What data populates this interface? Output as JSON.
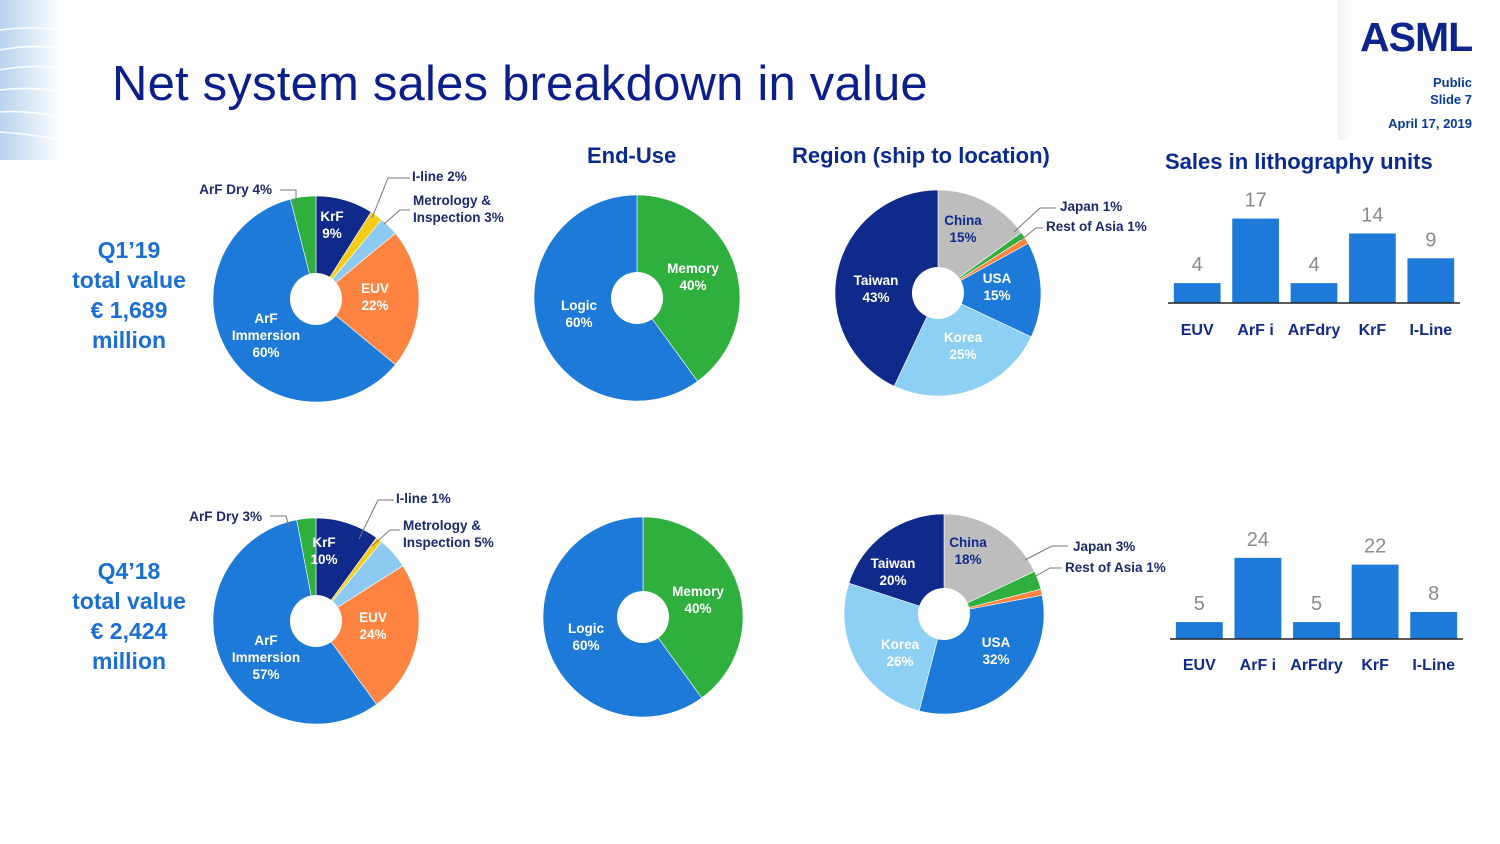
{
  "header": {
    "title": "Net system sales breakdown in value",
    "logo": "ASML",
    "classification": "Public",
    "slide": "Slide 7",
    "date": "April 17, 2019"
  },
  "column_titles": {
    "end_use": "End-Use",
    "region": "Region (ship to location)",
    "units": "Sales in lithography units"
  },
  "periods": [
    {
      "line1": "Q1’19",
      "line2": "total value",
      "line3": "€ 1,689",
      "line4": "million"
    },
    {
      "line1": "Q4’18",
      "line2": "total value",
      "line3": "€ 2,424",
      "line4": "million"
    }
  ],
  "colors": {
    "arf_immersion": "#1e7ad8",
    "arf_dry": "#2eaf3e",
    "krf": "#0f2a8a",
    "iline": "#f5cc18",
    "metrology": "#8ec9f2",
    "euv": "#ff8441",
    "logic": "#1e7ad8",
    "memory": "#2eaf3e",
    "taiwan": "#0f2a8a",
    "china": "#bdbdbd",
    "japan": "#2eaf3e",
    "rest_of_asia": "#ff8441",
    "usa": "#1e7ad8",
    "korea": "#8ecff4",
    "bar": "#1e7ad8"
  },
  "chart_data": [
    {
      "type": "pie",
      "id": "q1_technology",
      "slices": [
        {
          "name": "KrF",
          "value": 9,
          "color": "#0f2a8a"
        },
        {
          "name": "I-line",
          "value": 2,
          "color": "#f5cc18"
        },
        {
          "name": "Metrology & Inspection",
          "value": 3,
          "color": "#8ec9f2"
        },
        {
          "name": "EUV",
          "value": 22,
          "color": "#ff8441"
        },
        {
          "name": "ArF Immersion",
          "value": 60,
          "color": "#1e7ad8"
        },
        {
          "name": "ArF Dry",
          "value": 4,
          "color": "#2eaf3e"
        }
      ],
      "labels": [
        {
          "line1": "KrF",
          "line2": "9%",
          "color": "#ffffff"
        },
        {
          "line1": "I-line 2%",
          "line2": "",
          "color": "#1a2a6a"
        },
        {
          "line1": "Metrology &",
          "line2": "Inspection 3%",
          "color": "#1a2a6a"
        },
        {
          "line1": "EUV",
          "line2": "22%",
          "color": "#ffffff"
        },
        {
          "line1": "ArF",
          "line2": "Immersion",
          "line3": "60%",
          "color": "#ffffff"
        },
        {
          "line1": "ArF Dry 4%",
          "line2": "",
          "color": "#1a2a6a"
        }
      ]
    },
    {
      "type": "pie",
      "id": "q1_end_use",
      "slices": [
        {
          "name": "Memory",
          "value": 40,
          "color": "#2eaf3e"
        },
        {
          "name": "Logic",
          "value": 60,
          "color": "#1e7ad8"
        }
      ],
      "labels": [
        {
          "line1": "Memory",
          "line2": "40%",
          "color": "#ffffff"
        },
        {
          "line1": "Logic",
          "line2": "60%",
          "color": "#ffffff"
        }
      ]
    },
    {
      "type": "pie",
      "id": "q1_region",
      "slices": [
        {
          "name": "China",
          "value": 15,
          "color": "#bdbdbd"
        },
        {
          "name": "Japan",
          "value": 1,
          "color": "#2eaf3e"
        },
        {
          "name": "Rest of Asia",
          "value": 1,
          "color": "#ff8441"
        },
        {
          "name": "USA",
          "value": 15,
          "color": "#1e7ad8"
        },
        {
          "name": "Korea",
          "value": 25,
          "color": "#8ecff4"
        },
        {
          "name": "Taiwan",
          "value": 43,
          "color": "#0f2a8a"
        }
      ],
      "labels": [
        {
          "line1": "China",
          "line2": "15%",
          "color": "#0f2a8a"
        },
        {
          "line1": "Japan 1%",
          "line2": "",
          "color": "#1a2a6a"
        },
        {
          "line1": "Rest of Asia 1%",
          "line2": "",
          "color": "#1a2a6a"
        },
        {
          "line1": "USA",
          "line2": "15%",
          "color": "#ffffff"
        },
        {
          "line1": "Korea",
          "line2": "25%",
          "color": "#ffffff"
        },
        {
          "line1": "Taiwan",
          "line2": "43%",
          "color": "#ffffff"
        }
      ]
    },
    {
      "type": "bar",
      "id": "q1_units",
      "categories": [
        "EUV",
        "ArF i",
        "ArFdry",
        "KrF",
        "I-Line"
      ],
      "values": [
        4,
        17,
        4,
        14,
        9
      ]
    },
    {
      "type": "pie",
      "id": "q4_technology",
      "slices": [
        {
          "name": "KrF",
          "value": 10,
          "color": "#0f2a8a"
        },
        {
          "name": "I-line",
          "value": 1,
          "color": "#f5cc18"
        },
        {
          "name": "Metrology & Inspection",
          "value": 5,
          "color": "#8ec9f2"
        },
        {
          "name": "EUV",
          "value": 24,
          "color": "#ff8441"
        },
        {
          "name": "ArF Immersion",
          "value": 57,
          "color": "#1e7ad8"
        },
        {
          "name": "ArF Dry",
          "value": 3,
          "color": "#2eaf3e"
        }
      ],
      "labels": [
        {
          "line1": "KrF",
          "line2": "10%",
          "color": "#ffffff"
        },
        {
          "line1": "I-line 1%",
          "line2": "",
          "color": "#1a2a6a"
        },
        {
          "line1": "Metrology &",
          "line2": "Inspection 5%",
          "color": "#1a2a6a"
        },
        {
          "line1": "EUV",
          "line2": "24%",
          "color": "#ffffff"
        },
        {
          "line1": "ArF",
          "line2": "Immersion",
          "line3": "57%",
          "color": "#ffffff"
        },
        {
          "line1": "ArF Dry 3%",
          "line2": "",
          "color": "#1a2a6a"
        }
      ]
    },
    {
      "type": "pie",
      "id": "q4_end_use",
      "slices": [
        {
          "name": "Memory",
          "value": 40,
          "color": "#2eaf3e"
        },
        {
          "name": "Logic",
          "value": 60,
          "color": "#1e7ad8"
        }
      ],
      "labels": [
        {
          "line1": "Memory",
          "line2": "40%",
          "color": "#ffffff"
        },
        {
          "line1": "Logic",
          "line2": "60%",
          "color": "#ffffff"
        }
      ]
    },
    {
      "type": "pie",
      "id": "q4_region",
      "slices": [
        {
          "name": "China",
          "value": 18,
          "color": "#bdbdbd"
        },
        {
          "name": "Japan",
          "value": 3,
          "color": "#2eaf3e"
        },
        {
          "name": "Rest of Asia",
          "value": 1,
          "color": "#ff8441"
        },
        {
          "name": "USA",
          "value": 32,
          "color": "#1e7ad8"
        },
        {
          "name": "Korea",
          "value": 26,
          "color": "#8ecff4"
        },
        {
          "name": "Taiwan",
          "value": 20,
          "color": "#0f2a8a"
        }
      ],
      "labels": [
        {
          "line1": "China",
          "line2": "18%",
          "color": "#0f2a8a"
        },
        {
          "line1": "Japan 3%",
          "line2": "",
          "color": "#1a2a6a"
        },
        {
          "line1": "Rest of Asia 1%",
          "line2": "",
          "color": "#1a2a6a"
        },
        {
          "line1": "USA",
          "line2": "32%",
          "color": "#ffffff"
        },
        {
          "line1": "Korea",
          "line2": "26%",
          "color": "#ffffff"
        },
        {
          "line1": "Taiwan",
          "line2": "20%",
          "color": "#ffffff"
        }
      ]
    },
    {
      "type": "bar",
      "id": "q4_units",
      "categories": [
        "EUV",
        "ArF i",
        "ArFdry",
        "KrF",
        "I-Line"
      ],
      "values": [
        5,
        24,
        5,
        22,
        8
      ]
    }
  ]
}
